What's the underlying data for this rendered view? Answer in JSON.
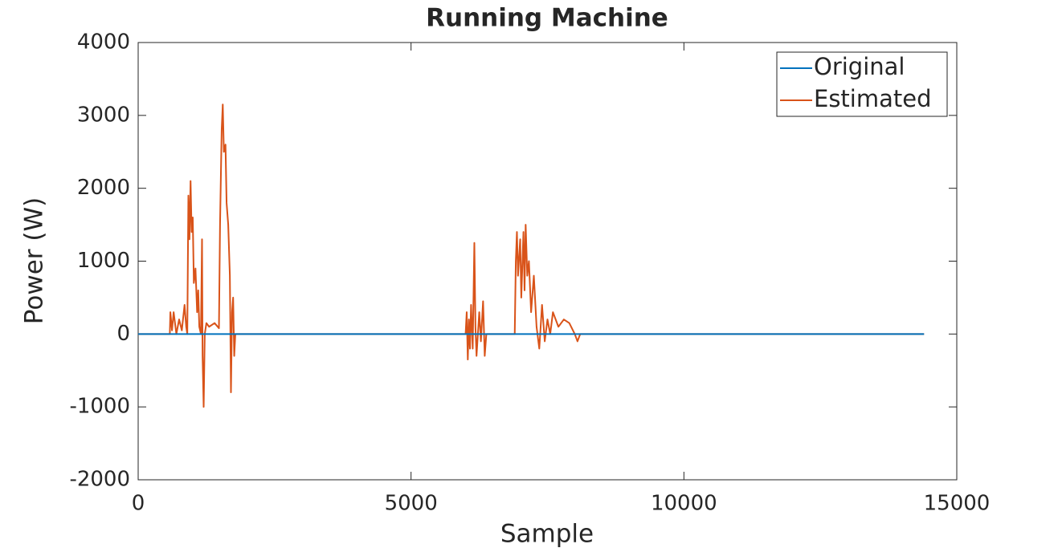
{
  "chart_data": {
    "type": "line",
    "title": "Running Machine",
    "xlabel": "Sample",
    "ylabel": "Power (W)",
    "xlim": [
      0,
      15000
    ],
    "xticks": [
      0,
      5000,
      10000,
      15000
    ],
    "ylim": [
      -2000,
      4000
    ],
    "yticks": [
      -2000,
      -1000,
      0,
      1000,
      2000,
      3000,
      4000
    ],
    "legend": "upper right",
    "series": [
      {
        "name": "Original",
        "color": "#0072bd",
        "x": [
          0,
          14400
        ],
        "values": [
          0,
          0
        ]
      },
      {
        "name": "Estimated",
        "color": "#d95319",
        "x": [
          0,
          580,
          590,
          620,
          650,
          700,
          750,
          800,
          850,
          880,
          900,
          920,
          940,
          960,
          980,
          1000,
          1020,
          1050,
          1080,
          1100,
          1120,
          1150,
          1170,
          1180,
          1200,
          1220,
          1250,
          1300,
          1400,
          1480,
          1500,
          1530,
          1550,
          1570,
          1600,
          1620,
          1650,
          1680,
          1700,
          1720,
          1740,
          1760,
          1780,
          1800,
          6000,
          6020,
          6040,
          6060,
          6080,
          6100,
          6130,
          6160,
          6180,
          6200,
          6250,
          6280,
          6320,
          6350,
          6380,
          6900,
          6920,
          6940,
          6960,
          7000,
          7020,
          7060,
          7080,
          7100,
          7130,
          7160,
          7200,
          7250,
          7300,
          7350,
          7400,
          7450,
          7500,
          7550,
          7600,
          7700,
          7800,
          7900,
          8000,
          8050,
          8100,
          14400
        ],
        "values": [
          0,
          0,
          300,
          50,
          300,
          0,
          200,
          50,
          400,
          100,
          0,
          1900,
          1300,
          2100,
          1400,
          1600,
          700,
          900,
          300,
          600,
          100,
          0,
          1300,
          -300,
          -1000,
          0,
          150,
          100,
          150,
          80,
          1500,
          2800,
          3150,
          2500,
          2600,
          1800,
          1500,
          800,
          -800,
          300,
          500,
          -300,
          0,
          0,
          0,
          300,
          -350,
          200,
          -200,
          400,
          -200,
          1250,
          100,
          -300,
          300,
          -100,
          450,
          -300,
          0,
          0,
          1000,
          1400,
          800,
          1300,
          500,
          1400,
          600,
          1500,
          800,
          1000,
          300,
          800,
          100,
          -200,
          400,
          -100,
          200,
          0,
          300,
          100,
          200,
          150,
          0,
          -100,
          0,
          0
        ]
      }
    ]
  }
}
